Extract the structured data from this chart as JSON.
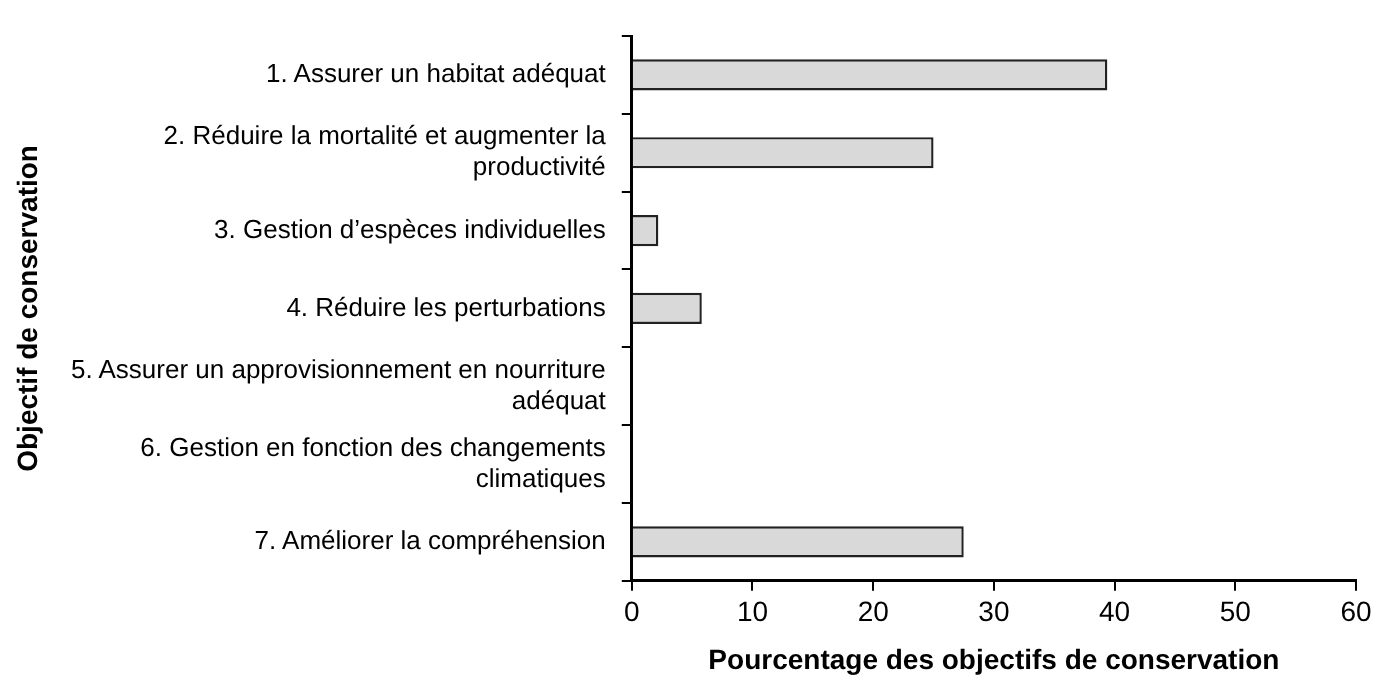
{
  "chart_data": {
    "type": "bar",
    "orientation": "horizontal",
    "xlabel": "Pourcentage des objectifs de conservation",
    "ylabel": "Objectif de conservation",
    "categories": [
      "1. Assurer un habitat adéquat",
      "2. Réduire la mortalité et augmenter la productivité",
      "3. Gestion d’espèces individuelles",
      "4. Réduire les perturbations",
      "5. Assurer un approvisionnement en nourriture adéquat",
      "6. Gestion en fonction des changements climatiques",
      "7. Améliorer la compréhension"
    ],
    "values": [
      39.4,
      25.0,
      2.2,
      5.8,
      0,
      0,
      27.5
    ],
    "color": "#d9d9d9",
    "xlim": [
      0,
      60
    ],
    "xticks": [
      0,
      10,
      20,
      30,
      40,
      50,
      60
    ],
    "grid": false,
    "legend": false
  }
}
